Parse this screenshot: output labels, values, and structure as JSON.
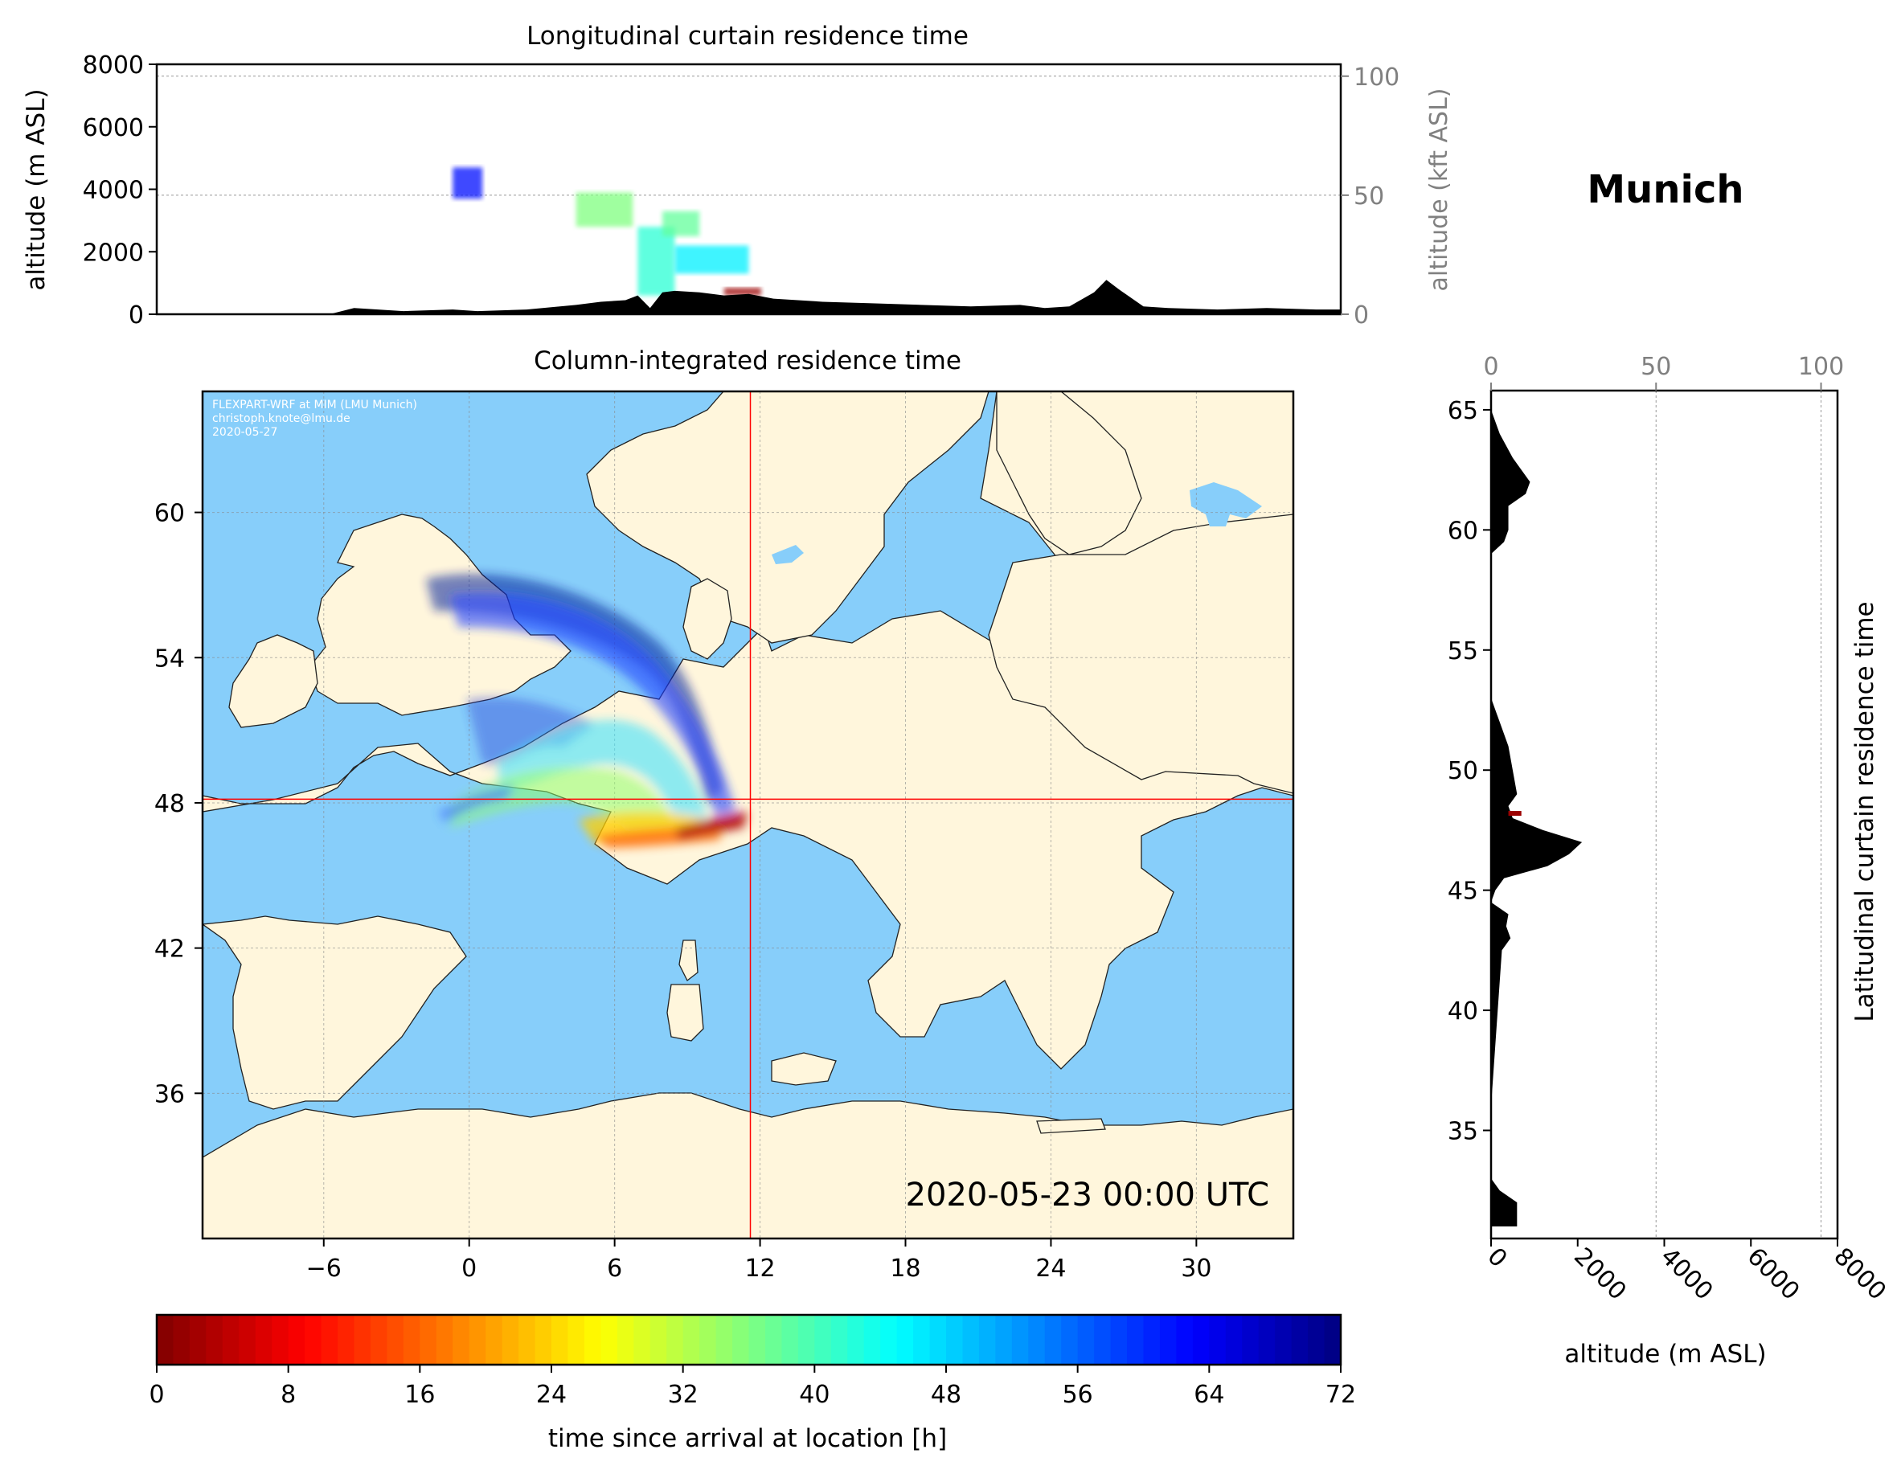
{
  "location_title": "Munich",
  "chart_data": [
    {
      "id": "longitudinal",
      "type": "area",
      "title": "Longitudinal curtain residence time",
      "ylabel": "altitude (m ASL)",
      "ylabel_right": "altitude (kft ASL)",
      "ylim": [
        0,
        8000
      ],
      "yticks": [
        "0",
        "2000",
        "4000",
        "6000",
        "8000"
      ],
      "ylim_right": [
        0,
        100
      ],
      "yticks_right": [
        "0",
        "50",
        "100"
      ],
      "xlim": [
        -13,
        35
      ],
      "grid": true,
      "series": [
        {
          "role": "terrain",
          "x": [
            -13,
            -6,
            -5,
            -3,
            -1,
            0,
            2,
            4,
            5,
            6,
            6.5,
            7,
            7.5,
            8,
            9,
            10,
            11,
            12,
            14,
            16,
            18,
            20,
            22,
            23,
            24,
            25,
            25.5,
            26,
            27,
            28,
            30,
            32,
            34,
            35
          ],
          "y": [
            0,
            0,
            200,
            100,
            150,
            100,
            150,
            300,
            400,
            450,
            600,
            200,
            700,
            750,
            700,
            600,
            650,
            500,
            400,
            350,
            300,
            250,
            300,
            200,
            250,
            700,
            1100,
            800,
            250,
            200,
            150,
            200,
            150,
            150
          ]
        }
      ],
      "residence_blobs": [
        {
          "x": [
            -1,
            0.2
          ],
          "alt": [
            3700,
            4700
          ],
          "hours": 62
        },
        {
          "x": [
            4,
            6.3
          ],
          "alt": [
            2800,
            3900
          ],
          "hours": 36
        },
        {
          "x": [
            6.5,
            8
          ],
          "alt": [
            600,
            2800
          ],
          "hours": 42
        },
        {
          "x": [
            7.5,
            9
          ],
          "alt": [
            2500,
            3300
          ],
          "hours": 38
        },
        {
          "x": [
            8,
            11
          ],
          "alt": [
            1300,
            2200
          ],
          "hours": 46
        },
        {
          "x": [
            10,
            11.5
          ],
          "alt": [
            600,
            850
          ],
          "hours": 2
        }
      ]
    },
    {
      "id": "map",
      "type": "heatmap",
      "title": "Column-integrated residence time",
      "xlim": [
        -11,
        34
      ],
      "ylim": [
        30,
        65
      ],
      "xticks": [
        "−6",
        "0",
        "6",
        "12",
        "18",
        "24",
        "30"
      ],
      "yticks": [
        "36",
        "42",
        "48",
        "54",
        "60"
      ],
      "grid": true,
      "release_location": {
        "lon": 11.6,
        "lat": 48.15
      },
      "credit": [
        "FLEXPART-WRF at MIM (LMU Munich)",
        "christoph.knote@lmu.de",
        "2020-05-27"
      ],
      "timestamp": "2020-05-23 00:00 UTC"
    },
    {
      "id": "latitudinal",
      "type": "area",
      "title": "Latitudinal curtain residence time",
      "xlabel": "altitude (m ASL)",
      "xlim": [
        0,
        8000
      ],
      "xticks": [
        "0",
        "2000",
        "4000",
        "6000",
        "8000"
      ],
      "xlim_top": [
        0,
        100
      ],
      "xticks_top": [
        "0",
        "50",
        "100"
      ],
      "ylim": [
        30.5,
        65.8
      ],
      "yticks": [
        "35",
        "40",
        "45",
        "50",
        "55",
        "60",
        "65"
      ],
      "grid": true,
      "series": [
        {
          "role": "terrain",
          "lat": [
            31,
            32,
            32.5,
            33,
            36,
            42.5,
            43,
            43.5,
            44,
            44.5,
            45,
            45.5,
            46,
            46.5,
            47,
            47.5,
            48,
            48.5,
            49,
            50,
            51,
            52,
            53,
            59,
            59.5,
            60,
            61,
            61.5,
            62,
            62.5,
            63,
            64,
            65,
            65.8
          ],
          "alt": [
            600,
            600,
            200,
            0,
            0,
            250,
            450,
            350,
            400,
            0,
            100,
            300,
            1300,
            1800,
            2100,
            1200,
            500,
            400,
            600,
            500,
            400,
            200,
            0,
            0,
            300,
            400,
            400,
            800,
            900,
            700,
            500,
            200,
            0,
            0
          ]
        }
      ],
      "residence_blobs": [
        {
          "lat": [
            48.1,
            48.3
          ],
          "alt": [
            400,
            700
          ],
          "hours": 2
        }
      ]
    },
    {
      "id": "colorbar",
      "type": "heatmap",
      "label": "time since arrival at location [h]",
      "range": [
        0,
        72
      ],
      "ticks": [
        "0",
        "8",
        "16",
        "24",
        "32",
        "40",
        "48",
        "56",
        "64",
        "72"
      ],
      "colormap": "jet_r"
    }
  ]
}
